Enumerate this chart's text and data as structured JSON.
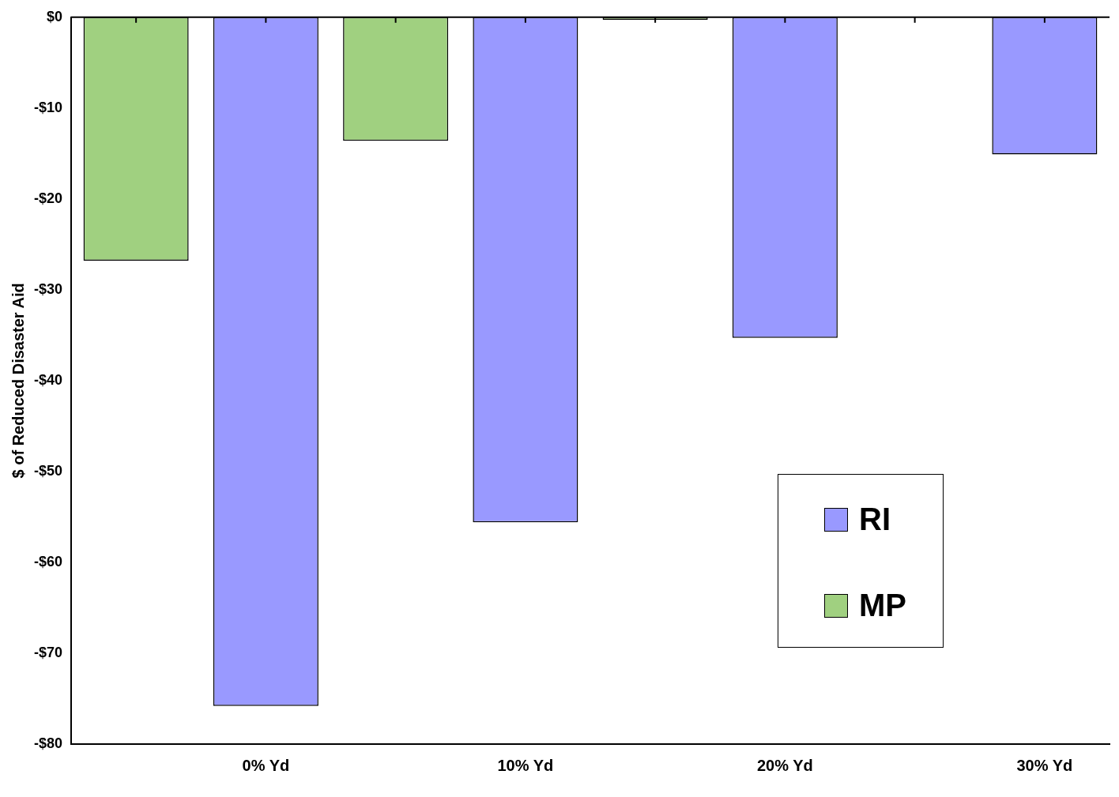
{
  "chart_data": {
    "type": "bar",
    "ylabel": "$ of Reduced Disaster Aid",
    "categories": [
      null,
      "0% Yd",
      null,
      "10% Yd",
      null,
      "20% Yd",
      null,
      "30% Yd"
    ],
    "series": [
      {
        "name": "RI",
        "color": "#9999ff",
        "values": [
          null,
          -75.8,
          null,
          -55.6,
          null,
          -35.3,
          null,
          -15.1
        ]
      },
      {
        "name": "MP",
        "color": "#a0d080",
        "values": [
          -26.8,
          null,
          -13.6,
          null,
          -0.3,
          null,
          null,
          null
        ]
      }
    ],
    "ylim": [
      -80,
      0
    ],
    "yticks": [
      {
        "value": 0,
        "label": "$0"
      },
      {
        "value": -10,
        "label": "-$10"
      },
      {
        "value": -20,
        "label": "-$20"
      },
      {
        "value": -30,
        "label": "-$30"
      },
      {
        "value": -40,
        "label": "-$40"
      },
      {
        "value": -50,
        "label": "-$50"
      },
      {
        "value": -60,
        "label": "-$60"
      },
      {
        "value": -70,
        "label": "-$70"
      },
      {
        "value": -80,
        "label": "-$80"
      }
    ],
    "grid": false,
    "legend": "right"
  }
}
